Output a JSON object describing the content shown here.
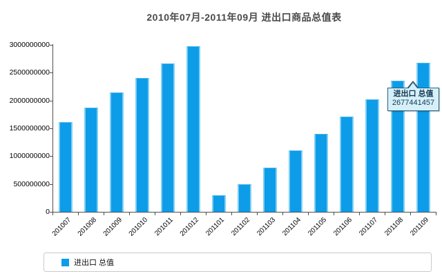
{
  "chart_data": {
    "type": "bar",
    "title": "2010年07月-2011年09月 进出口商品总值表",
    "categories": [
      "201007",
      "201008",
      "201009",
      "201010",
      "201011",
      "201012",
      "201101",
      "201102",
      "201103",
      "201104",
      "201105",
      "201106",
      "201107",
      "201108",
      "201109"
    ],
    "series": [
      {
        "name": "进出口 总值",
        "values": [
          1617000000,
          1875000000,
          2140000000,
          2400000000,
          2670000000,
          2970000000,
          295000000,
          490000000,
          795000000,
          1100000000,
          1400000000,
          1705000000,
          2020000000,
          2355000000,
          2677441457
        ]
      }
    ],
    "xlabel": "",
    "ylabel": "",
    "ylim": [
      0,
      3000000000
    ],
    "y_ticks": [
      "0",
      "500000000",
      "1000000000",
      "1500000000",
      "2000000000",
      "2500000000",
      "3000000000"
    ],
    "grid": false,
    "legend_position": "bottom"
  },
  "tooltip": {
    "label": "进出口 总值",
    "value": "2677441457",
    "anchor_category": "201109"
  },
  "legend": {
    "label": "进出口 总值"
  },
  "colors": {
    "bar": "#0d9ce8",
    "bar_edge": "#7fcff3",
    "tooltip_bg": "#d5f0fb",
    "tooltip_border": "#2b5d77",
    "axis": "#4d4d4d"
  }
}
